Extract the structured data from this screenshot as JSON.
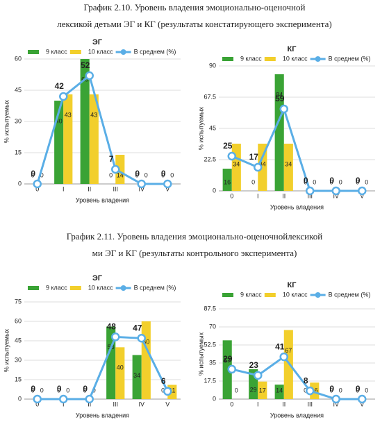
{
  "captions": [
    [
      "График 2.10. Уровень владения эмоционально-оценочной",
      "лексикой детьми ЭГ и КГ (результаты констатирующего эксперимента)"
    ],
    [
      "График 2.11. Уровень владения эмоционально-оценочнойлексикой",
      "ми ЭГ и КГ (результаты контрольного эксперимента)"
    ]
  ],
  "chart_data": [
    {
      "type": "bar",
      "title": "ЭГ",
      "ylabel": "% испытуемых",
      "xlabel": "Уровень владения",
      "categories": [
        "0",
        "I",
        "II",
        "III",
        "IV",
        "V"
      ],
      "ylim": [
        0,
        60
      ],
      "yticks": [
        0,
        15,
        30,
        45,
        60
      ],
      "grid": true,
      "series": [
        {
          "name": "9 класс",
          "color": "#3aa335",
          "values": [
            0,
            40,
            60,
            0,
            0,
            0
          ]
        },
        {
          "name": "10 класс",
          "color": "#f2cf2c",
          "values": [
            0,
            43,
            43,
            14,
            0,
            0
          ]
        },
        {
          "name": "В среднем (%)",
          "type": "line",
          "color": "#5aaee6",
          "values": [
            0,
            42,
            52,
            7,
            0,
            0
          ]
        }
      ]
    },
    {
      "type": "bar",
      "title": "КГ",
      "ylabel": "% испытуемых",
      "xlabel": "Уровень владения",
      "categories": [
        "0",
        "I",
        "II",
        "III",
        "IV",
        "V"
      ],
      "ylim": [
        0,
        90
      ],
      "yticks": [
        0,
        22.5,
        45,
        67.5,
        90
      ],
      "grid": true,
      "series": [
        {
          "name": "9 класс",
          "color": "#3aa335",
          "values": [
            16,
            0,
            84,
            0,
            0,
            0
          ]
        },
        {
          "name": "10 класс",
          "color": "#f2cf2c",
          "values": [
            34,
            34,
            34,
            0,
            0,
            0
          ]
        },
        {
          "name": "В среднем (%)",
          "type": "line",
          "color": "#5aaee6",
          "values": [
            25,
            17,
            59,
            0,
            0,
            0
          ]
        }
      ]
    },
    {
      "type": "bar",
      "title": "ЭГ",
      "ylabel": "% испытуемых",
      "xlabel": "Уровень владения",
      "categories": [
        "0",
        "I",
        "II",
        "III",
        "IV",
        "V"
      ],
      "ylim": [
        0,
        75
      ],
      "yticks": [
        0,
        15,
        30,
        45,
        60,
        75
      ],
      "grid": true,
      "series": [
        {
          "name": "9 класс",
          "color": "#3aa335",
          "values": [
            0,
            0,
            0,
            56,
            34,
            0
          ]
        },
        {
          "name": "10 класс",
          "color": "#f2cf2c",
          "values": [
            0,
            0,
            0,
            40,
            60,
            11
          ]
        },
        {
          "name": "В среднем (%)",
          "type": "line",
          "color": "#5aaee6",
          "values": [
            0,
            0,
            0,
            48,
            47,
            6
          ]
        }
      ]
    },
    {
      "type": "bar",
      "title": "КГ",
      "ylabel": "% испытуемых",
      "xlabel": "Уровень владения",
      "categories": [
        "0",
        "I",
        "II",
        "III",
        "IV",
        "V"
      ],
      "ylim": [
        0,
        87.5
      ],
      "yticks": [
        0,
        17.5,
        35,
        52.5,
        70,
        87.5
      ],
      "grid": true,
      "series": [
        {
          "name": "9 класс",
          "color": "#3aa335",
          "values": [
            57,
            29,
            14,
            0,
            0,
            0
          ]
        },
        {
          "name": "10 класс",
          "color": "#f2cf2c",
          "values": [
            0,
            17,
            67,
            16,
            0,
            0
          ]
        },
        {
          "name": "В среднем (%)",
          "type": "line",
          "color": "#5aaee6",
          "values": [
            29,
            23,
            41,
            8,
            0,
            0
          ]
        }
      ]
    }
  ]
}
